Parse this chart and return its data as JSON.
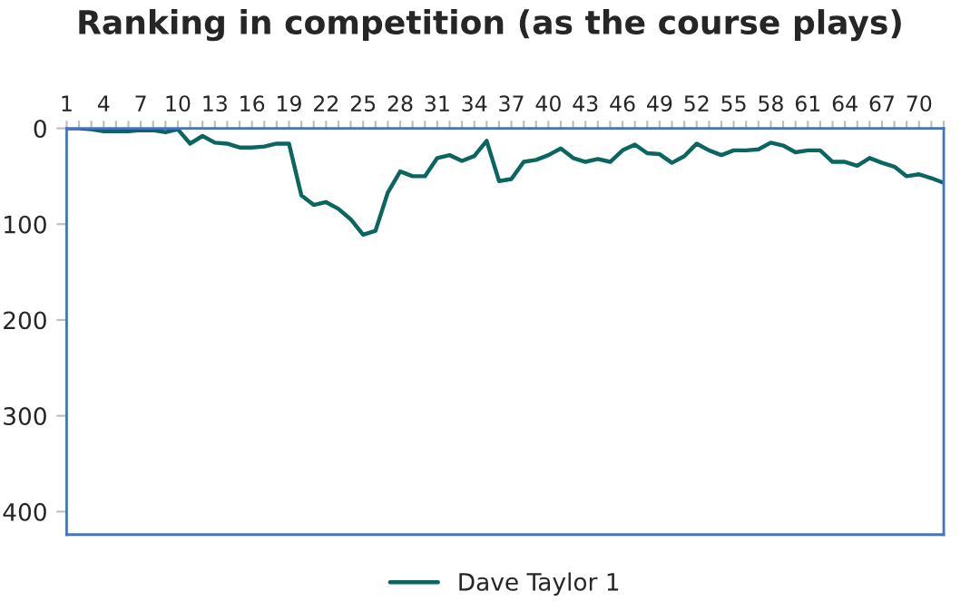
{
  "chart_data": {
    "type": "line",
    "title": "Ranking in competition (as the course plays)",
    "categories": [
      "1",
      null,
      null,
      "4",
      null,
      null,
      "7",
      null,
      null,
      "10",
      null,
      null,
      "13",
      null,
      null,
      "16",
      null,
      null,
      "19",
      null,
      null,
      "22",
      null,
      null,
      "25",
      null,
      null,
      "28",
      null,
      null,
      "31",
      null,
      null,
      "34",
      null,
      null,
      "37",
      null,
      null,
      "40",
      null,
      null,
      "43",
      null,
      null,
      "46",
      null,
      null,
      "49",
      null,
      null,
      "52",
      null,
      null,
      "55",
      null,
      null,
      "58",
      null,
      null,
      "61",
      null,
      null,
      "64",
      null,
      null,
      "67",
      null,
      null,
      "70",
      null,
      null
    ],
    "series": [
      {
        "name": "Dave Taylor 1",
        "color": "#0b6660",
        "values": [
          0,
          0,
          1,
          3,
          3,
          3,
          2,
          2,
          4,
          1,
          16,
          8,
          15,
          16,
          20,
          20,
          19,
          16,
          16,
          70,
          80,
          77,
          84,
          95,
          111,
          107,
          67,
          45,
          50,
          50,
          31,
          28,
          34,
          29,
          13,
          55,
          53,
          35,
          33,
          28,
          21,
          31,
          35,
          32,
          35,
          23,
          17,
          26,
          27,
          36,
          29,
          16,
          23,
          28,
          23,
          23,
          22,
          15,
          18,
          25,
          23,
          23,
          35,
          35,
          39,
          31,
          36,
          40,
          50,
          48,
          52,
          57
        ]
      }
    ],
    "ylim": [
      424,
      0
    ],
    "yticks": [
      0,
      100,
      200,
      300,
      400
    ],
    "grid": false,
    "legend": "bottom",
    "marker": "none",
    "line_style": "solid"
  }
}
